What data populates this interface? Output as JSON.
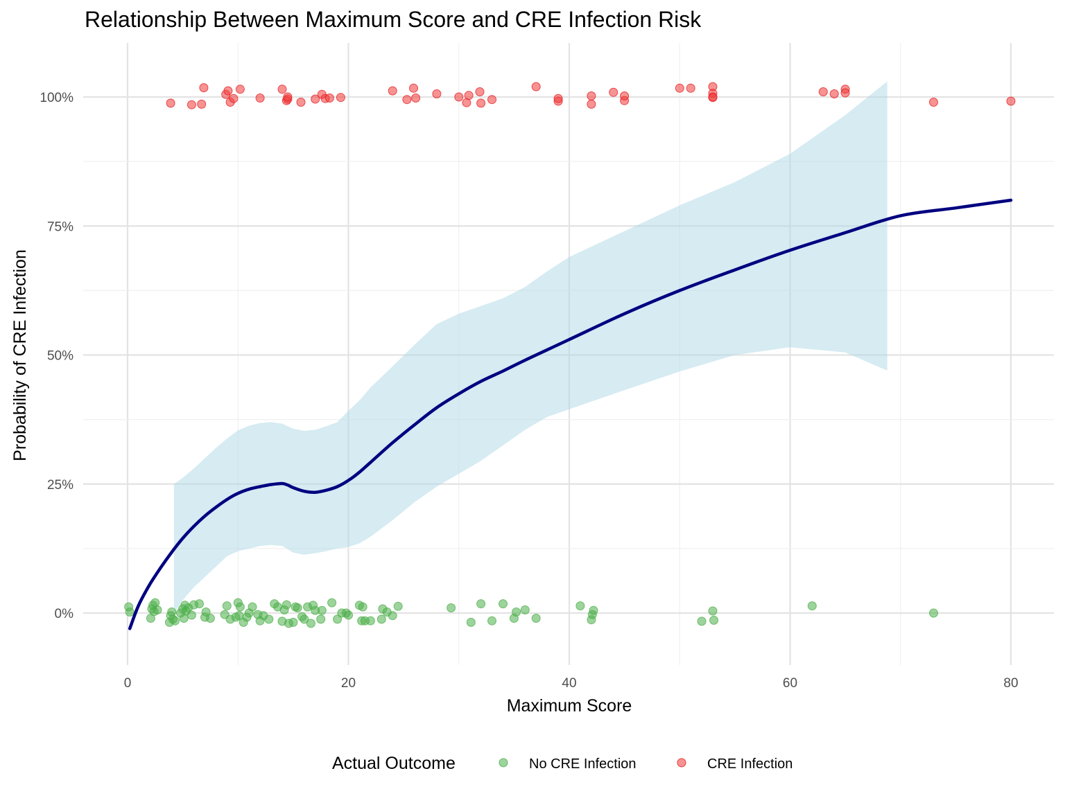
{
  "chart_data": {
    "type": "scatter",
    "title": "Relationship Between Maximum Score and CRE Infection Risk",
    "xlabel": "Maximum Score",
    "ylabel": "Probability of CRE Infection",
    "xlim": [
      -4,
      84
    ],
    "ylim": [
      -0.1,
      1.1
    ],
    "x_ticks": [
      0,
      20,
      40,
      60,
      80
    ],
    "x_tick_labels": [
      "0",
      "20",
      "40",
      "60",
      "80"
    ],
    "y_ticks": [
      0,
      0.25,
      0.5,
      0.75,
      1.0
    ],
    "y_tick_labels": [
      "0%",
      "25%",
      "50%",
      "75%",
      "100%"
    ],
    "grid": true,
    "legend": {
      "title": "Actual Outcome",
      "position": "bottom",
      "entries": [
        {
          "label": "No CRE Infection",
          "color": "#4daf4a"
        },
        {
          "label": "CRE Infection",
          "color": "#e41a1c"
        }
      ]
    },
    "colors": {
      "no_infection": "#4daf4a",
      "infection": "#f03b3b",
      "trend_line": "#000080",
      "confidence_band": "#add8e6"
    },
    "series": [
      {
        "name": "No CRE Infection",
        "outcome": 0,
        "x": [
          0.1,
          0.2,
          2.1,
          2.2,
          2.3,
          2.4,
          2.5,
          2.7,
          3.8,
          3.9,
          4.0,
          4.1,
          4.3,
          4.8,
          5.0,
          5.1,
          5.2,
          5.3,
          5.5,
          5.8,
          6.0,
          6.5,
          7.0,
          7.1,
          7.5,
          8.8,
          9.0,
          9.3,
          9.8,
          10.0,
          10.1,
          10.2,
          10.5,
          10.8,
          11.0,
          11.3,
          11.8,
          12.0,
          12.3,
          12.8,
          13.3,
          13.6,
          14.0,
          14.2,
          14.4,
          14.6,
          15.0,
          15.2,
          15.4,
          15.8,
          16.0,
          16.3,
          16.6,
          16.8,
          17.0,
          17.5,
          17.6,
          18.5,
          19.0,
          19.4,
          19.8,
          20.0,
          21.0,
          21.2,
          21.3,
          21.5,
          22.0,
          23.0,
          23.1,
          23.5,
          24.0,
          24.5,
          29.3,
          31.1,
          32.0,
          33.0,
          34.0,
          35.0,
          35.2,
          36.0,
          37.0,
          41.0,
          42.0,
          42.1,
          42.2,
          52.0,
          53.0,
          53.1,
          62.0,
          73.0
        ],
        "y": [
          0.012,
          0.002,
          -0.01,
          0.008,
          0.015,
          0.003,
          0.02,
          0.006,
          -0.018,
          -0.005,
          0.002,
          -0.012,
          -0.015,
          0.0,
          0.008,
          -0.01,
          0.015,
          0.004,
          0.01,
          -0.004,
          0.016,
          0.018,
          -0.008,
          0.002,
          -0.01,
          -0.003,
          0.014,
          -0.012,
          -0.008,
          0.02,
          -0.005,
          0.012,
          -0.018,
          -0.008,
          0.0,
          0.012,
          -0.003,
          -0.015,
          -0.005,
          -0.012,
          0.018,
          0.012,
          -0.016,
          0.006,
          0.016,
          -0.02,
          -0.018,
          0.012,
          0.01,
          -0.007,
          -0.012,
          0.012,
          -0.02,
          0.015,
          0.005,
          -0.012,
          0.005,
          0.02,
          -0.012,
          0.0,
          0.0,
          -0.004,
          0.015,
          -0.015,
          0.012,
          -0.015,
          -0.015,
          -0.012,
          0.008,
          0.002,
          -0.005,
          0.013,
          0.01,
          -0.018,
          0.018,
          -0.015,
          0.018,
          -0.01,
          0.002,
          0.006,
          -0.01,
          0.014,
          -0.013,
          -0.003,
          0.005,
          -0.016,
          0.004,
          -0.014,
          0.014,
          0.0
        ]
      },
      {
        "name": "CRE Infection",
        "outcome": 1,
        "x": [
          3.9,
          5.8,
          6.7,
          6.9,
          8.9,
          9.1,
          9.3,
          9.6,
          10.2,
          12.0,
          14.0,
          14.4,
          14.5,
          14.5,
          15.7,
          17.0,
          17.6,
          17.9,
          18.3,
          19.3,
          24.0,
          25.3,
          25.9,
          26.1,
          28.0,
          30.0,
          30.7,
          30.9,
          31.9,
          32.0,
          33.0,
          37.0,
          39.0,
          39.0,
          42.0,
          42.0,
          44.0,
          45.0,
          45.0,
          50.0,
          51.0,
          53.0,
          53.0,
          53.0,
          53.0,
          63.0,
          64.0,
          65.0,
          65.0,
          73.0,
          80.0
        ],
        "y": [
          0.988,
          0.985,
          0.986,
          1.018,
          1.005,
          1.012,
          0.99,
          0.997,
          1.015,
          0.998,
          1.015,
          0.993,
          0.996,
          1.0,
          0.99,
          0.996,
          1.005,
          0.997,
          0.998,
          0.999,
          1.012,
          0.995,
          1.017,
          0.998,
          1.006,
          1.0,
          0.989,
          1.003,
          1.01,
          0.988,
          0.995,
          1.02,
          0.992,
          0.997,
          1.002,
          0.986,
          1.009,
          0.993,
          1.002,
          1.017,
          1.017,
          1.02,
          1.007,
          0.999,
          1.0,
          1.01,
          1.006,
          1.015,
          1.008,
          0.99,
          0.992
        ]
      },
      {
        "name": "smooth",
        "role": "trend",
        "x": [
          0.2,
          1,
          2,
          3,
          4,
          5,
          6,
          7,
          8,
          9,
          10,
          11,
          12,
          13,
          14,
          14.5,
          15,
          16,
          17,
          18,
          19,
          20,
          21,
          22,
          24,
          26,
          28,
          30,
          32,
          34,
          36,
          38,
          40,
          45,
          50,
          55,
          60,
          65,
          70,
          75,
          80
        ],
        "y": [
          -0.03,
          0.015,
          0.055,
          0.088,
          0.118,
          0.145,
          0.168,
          0.188,
          0.205,
          0.22,
          0.232,
          0.24,
          0.245,
          0.249,
          0.251,
          0.248,
          0.243,
          0.236,
          0.234,
          0.238,
          0.245,
          0.257,
          0.273,
          0.292,
          0.33,
          0.365,
          0.398,
          0.425,
          0.449,
          0.469,
          0.49,
          0.51,
          0.53,
          0.58,
          0.625,
          0.665,
          0.703,
          0.737,
          0.77,
          0.785,
          0.8
        ]
      },
      {
        "name": "confidence band",
        "role": "band",
        "x": [
          4.2,
          5,
          6,
          7,
          8,
          9,
          10,
          11,
          12,
          13,
          14,
          15,
          16,
          17,
          18,
          19,
          20,
          21,
          22,
          24,
          26,
          28,
          30,
          32,
          34,
          36,
          38,
          40,
          45,
          50,
          55,
          60,
          65,
          68.8
        ],
        "upper": [
          0.25,
          0.262,
          0.28,
          0.3,
          0.32,
          0.338,
          0.354,
          0.363,
          0.368,
          0.37,
          0.367,
          0.357,
          0.353,
          0.355,
          0.362,
          0.37,
          0.392,
          0.412,
          0.437,
          0.478,
          0.52,
          0.56,
          0.58,
          0.595,
          0.61,
          0.632,
          0.662,
          0.69,
          0.74,
          0.79,
          0.835,
          0.89,
          0.965,
          1.03
        ],
        "lower": [
          0.0,
          0.025,
          0.05,
          0.07,
          0.09,
          0.11,
          0.12,
          0.125,
          0.13,
          0.132,
          0.13,
          0.117,
          0.113,
          0.116,
          0.12,
          0.125,
          0.128,
          0.135,
          0.148,
          0.18,
          0.215,
          0.245,
          0.27,
          0.295,
          0.325,
          0.355,
          0.38,
          0.395,
          0.432,
          0.468,
          0.5,
          0.515,
          0.505,
          0.47
        ]
      }
    ]
  }
}
